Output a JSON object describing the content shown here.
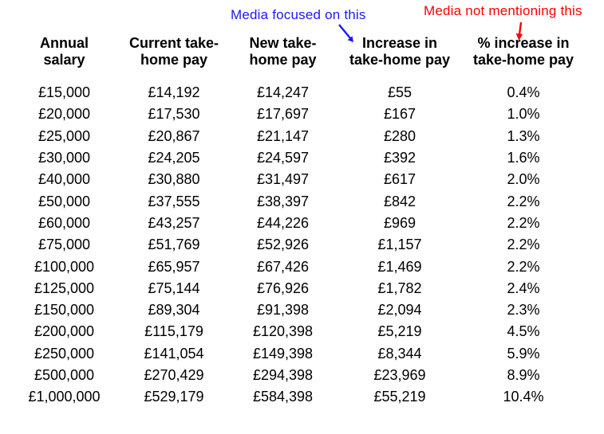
{
  "chart_data": {
    "type": "table",
    "title": "",
    "columns": [
      "Annual salary",
      "Current take-home pay",
      "New take-home pay",
      "Increase in take-home pay",
      "% increase in take-home pay"
    ],
    "rows": [
      [
        "£15,000",
        "£14,192",
        "£14,247",
        "£55",
        "0.4%"
      ],
      [
        "£20,000",
        "£17,530",
        "£17,697",
        "£167",
        "1.0%"
      ],
      [
        "£25,000",
        "£20,867",
        "£21,147",
        "£280",
        "1.3%"
      ],
      [
        "£30,000",
        "£24,205",
        "£24,597",
        "£392",
        "1.6%"
      ],
      [
        "£40,000",
        "£30,880",
        "£31,497",
        "£617",
        "2.0%"
      ],
      [
        "£50,000",
        "£37,555",
        "£38,397",
        "£842",
        "2.2%"
      ],
      [
        "£60,000",
        "£43,257",
        "£44,226",
        "£969",
        "2.2%"
      ],
      [
        "£75,000",
        "£51,769",
        "£52,926",
        "£1,157",
        "2.2%"
      ],
      [
        "£100,000",
        "£65,957",
        "£67,426",
        "£1,469",
        "2.2%"
      ],
      [
        "£125,000",
        "£75,144",
        "£76,926",
        "£1,782",
        "2.4%"
      ],
      [
        "£150,000",
        "£89,304",
        "£91,398",
        "£2,094",
        "2.3%"
      ],
      [
        "£200,000",
        "£115,179",
        "£120,398",
        "£5,219",
        "4.5%"
      ],
      [
        "£250,000",
        "£141,054",
        "£149,398",
        "£8,344",
        "5.9%"
      ],
      [
        "£500,000",
        "£270,429",
        "£294,398",
        "£23,969",
        "8.9%"
      ],
      [
        "£1,000,000",
        "£529,179",
        "£584,398",
        "£55,219",
        "10.4%"
      ]
    ],
    "annotations": [
      {
        "text": "Media focused on this",
        "color": "#1a1aff",
        "target_column": "Increase in take-home pay",
        "arrow": "down-right"
      },
      {
        "text": "Media not mentioning this",
        "color": "#ff0000",
        "target_column": "% increase in take-home pay",
        "arrow": "down"
      }
    ],
    "layout_hints": {
      "grid": "off",
      "cell_alignment": "center",
      "header_style": "bold, two lines"
    }
  },
  "header_lines": [
    {
      "line1": "Annual",
      "line2": "salary"
    },
    {
      "line1": "Current take-",
      "line2": "home pay"
    },
    {
      "line1": "New take-",
      "line2": "home pay"
    },
    {
      "line1": "Increase in",
      "line2": "take-home pay"
    },
    {
      "line1": "% increase in",
      "line2": "take-home pay"
    }
  ],
  "colors": {
    "text": "#000000",
    "background": "#ffffff",
    "annotation_blue": "#1a1aff",
    "annotation_red": "#ff0000"
  }
}
